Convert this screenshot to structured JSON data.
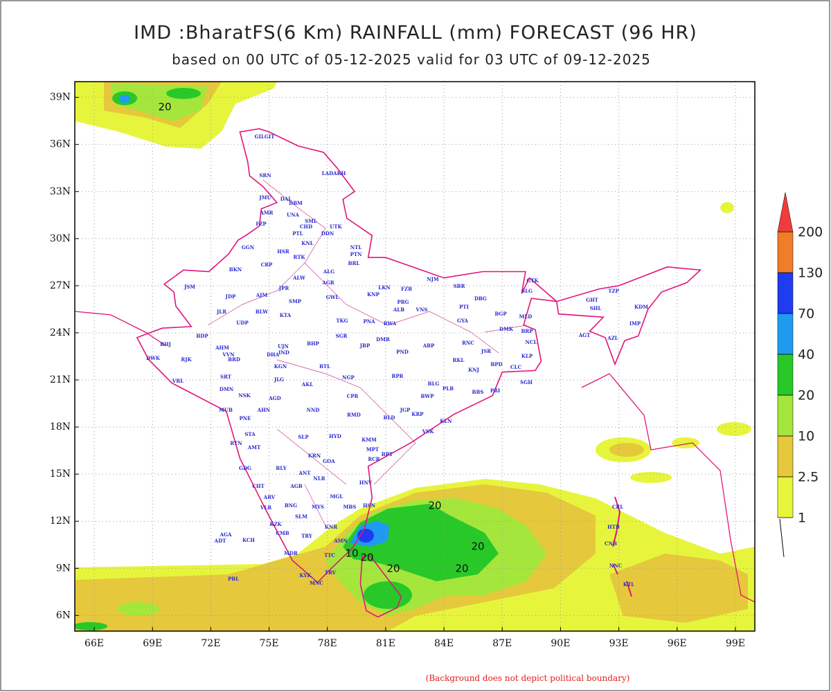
{
  "title": "IMD :BharatFS(6 Km) RAINFALL (mm) FORECAST (96 HR)",
  "subtitle": "based on 00 UTC of 05-12-2025 valid for 03 UTC of 09-12-2025",
  "map": {
    "xlim": [
      65,
      100
    ],
    "ylim": [
      5,
      40
    ],
    "xticks": [
      {
        "value": 66,
        "label": "66E"
      },
      {
        "value": 69,
        "label": "69E"
      },
      {
        "value": 72,
        "label": "72E"
      },
      {
        "value": 75,
        "label": "75E"
      },
      {
        "value": 78,
        "label": "78E"
      },
      {
        "value": 81,
        "label": "81E"
      },
      {
        "value": 84,
        "label": "84E"
      },
      {
        "value": 87,
        "label": "87E"
      },
      {
        "value": 90,
        "label": "90E"
      },
      {
        "value": 93,
        "label": "93E"
      },
      {
        "value": 96,
        "label": "96E"
      },
      {
        "value": 99,
        "label": "99E"
      }
    ],
    "yticks": [
      {
        "value": 6,
        "label": "6N"
      },
      {
        "value": 9,
        "label": "9N"
      },
      {
        "value": 12,
        "label": "12N"
      },
      {
        "value": 15,
        "label": "15N"
      },
      {
        "value": 18,
        "label": "18N"
      },
      {
        "value": 21,
        "label": "21N"
      },
      {
        "value": 24,
        "label": "24N"
      },
      {
        "value": 27,
        "label": "27N"
      },
      {
        "value": 30,
        "label": "30N"
      },
      {
        "value": 33,
        "label": "33N"
      },
      {
        "value": 36,
        "label": "36N"
      },
      {
        "value": 39,
        "label": "39N"
      }
    ],
    "grid": true
  },
  "colorbar": {
    "levels": [
      1,
      2.5,
      10,
      20,
      40,
      70,
      130,
      200
    ],
    "colors": [
      "#e6f53c",
      "#e6c83c",
      "#a5e63c",
      "#28c828",
      "#1e9bf0",
      "#1e3cf0",
      "#f07d28",
      "#f03c3c"
    ]
  },
  "contour_labels": [
    20,
    20,
    20,
    20,
    20,
    10,
    20
  ],
  "stations": [
    "GILGIT",
    "LADAKH",
    "SRN",
    "JMU",
    "DAL",
    "DBM",
    "AMR",
    "UNA",
    "SML",
    "FZP",
    "UTK",
    "CHD",
    "PTL",
    "DDN",
    "GGN",
    "KNL",
    "NTL",
    "HSR",
    "PTN",
    "RTK",
    "BKN",
    "CRP",
    "ALG",
    "BRL",
    "ALW",
    "AGR",
    "JSM",
    "LKN",
    "FZB",
    "NJM",
    "GTK",
    "JDP",
    "AJM",
    "JPR",
    "KNP",
    "SBR",
    "TZP",
    "DBG",
    "PRG",
    "GWL",
    "SMP",
    "JLR",
    "BLW",
    "KTA",
    "VNS",
    "ALB",
    "PTI",
    "SHL",
    "GHT",
    "BGP",
    "SLG",
    "KDM",
    "IMP",
    "TKG",
    "SGR",
    "JBP",
    "DMR",
    "RWA",
    "PNA",
    "GYA",
    "DMK",
    "MLD",
    "BRP",
    "UDP",
    "AGT",
    "AZL",
    "BDP",
    "AHM",
    "BHP",
    "UJN",
    "IND",
    "RNC",
    "ABP",
    "PND",
    "JSR",
    "NCL",
    "KLP",
    "CLC",
    "BHJ",
    "DWK",
    "RJK",
    "VVN",
    "BRD",
    "DHA",
    "KGN",
    "BTL",
    "RKL",
    "KNJ",
    "BPD",
    "VRL",
    "SRT",
    "JLG",
    "AKL",
    "NGP",
    "RPR",
    "SGH",
    "BLG",
    "PLB",
    "BBS",
    "PRI",
    "DMN",
    "NSK",
    "AGD",
    "CPR",
    "JGP",
    "BWP",
    "KRP",
    "MUB",
    "AHN",
    "NND",
    "RMD",
    "BLD",
    "KLN",
    "PNE",
    "VSK",
    "STA",
    "HYD",
    "KMM",
    "SLP",
    "RTN",
    "AMT",
    "MPT",
    "BPT",
    "RCR",
    "KRN",
    "GOA",
    "GDG",
    "BLY",
    "ANT",
    "NLR",
    "HNV",
    "CHT",
    "AGB",
    "ARV",
    "MGL",
    "VLR",
    "MBS",
    "HSN",
    "BNG",
    "MYS",
    "SLM",
    "KNR",
    "KZK",
    "CMB",
    "TRY",
    "AMN",
    "AGA",
    "ADT",
    "KCH",
    "MDR",
    "TTC",
    "TRV",
    "KYK",
    "MNC",
    "PBL",
    "CRL",
    "HTB",
    "CNB",
    "NNC",
    "KTL"
  ],
  "footnote": "(Background does not depict political boundary)"
}
